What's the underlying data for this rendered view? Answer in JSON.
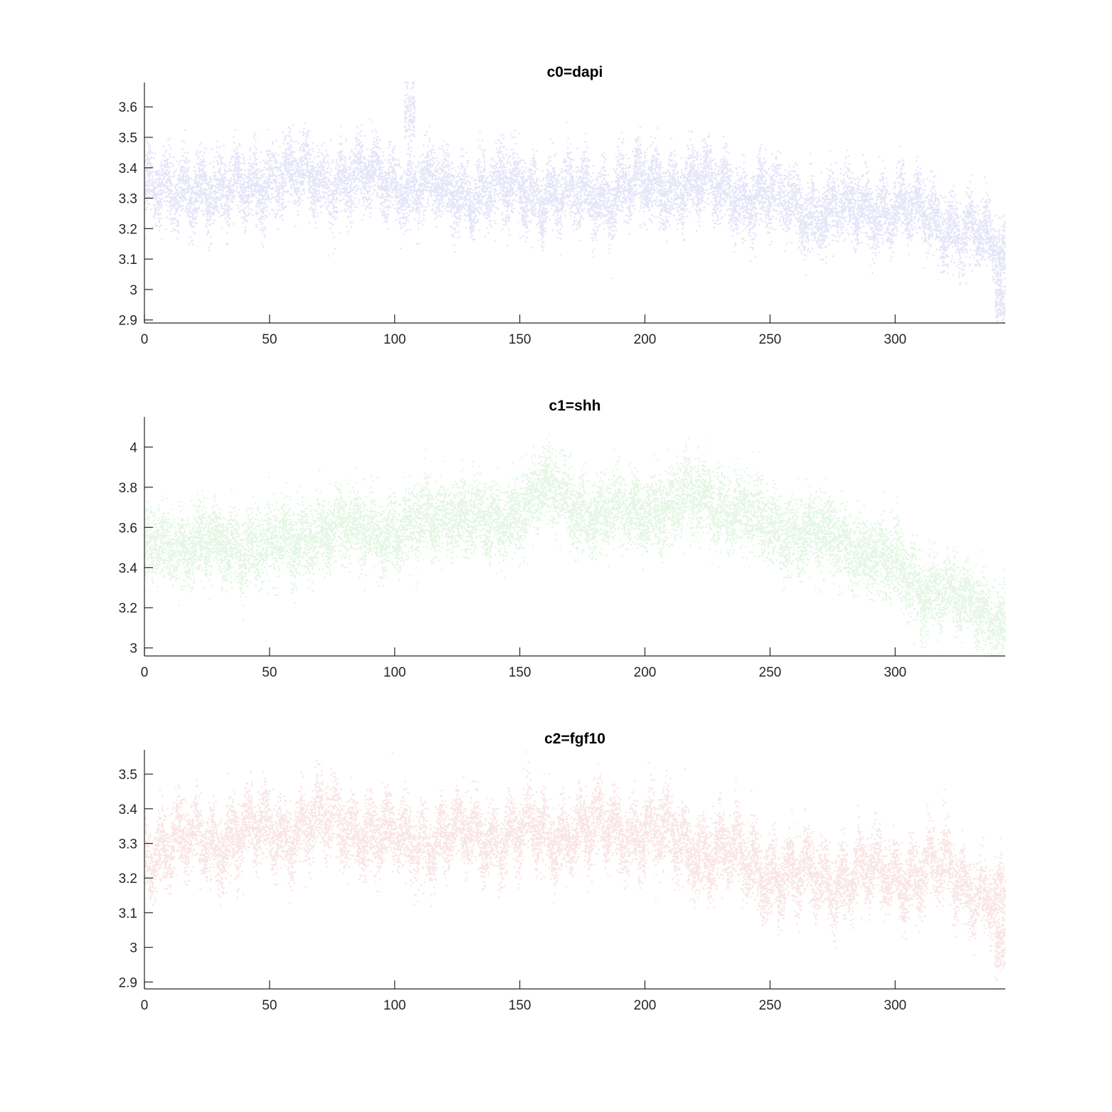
{
  "chart_data": [
    {
      "type": "scatter",
      "title": "c0=dapi",
      "xlabel": "",
      "ylabel": "",
      "xlim": [
        0,
        344
      ],
      "ylim": [
        2.89,
        3.68
      ],
      "xticks": [
        0,
        50,
        100,
        150,
        200,
        250,
        300
      ],
      "xtick_labels": [
        "0",
        "50",
        "100",
        "150",
        "200",
        "250",
        "300"
      ],
      "yticks": [
        2.9,
        3.0,
        3.1,
        3.2,
        3.3,
        3.4,
        3.5,
        3.6
      ],
      "ytick_labels": [
        "2.9",
        "3",
        "3.1",
        "3.2",
        "3.3",
        "3.4",
        "3.5",
        "3.6"
      ],
      "color": "#2a2ad0",
      "point_alpha": 0.12,
      "points_per_unit": 40,
      "noise_sd": 0.055,
      "trend": {
        "x": [
          0,
          10,
          20,
          30,
          50,
          80,
          100,
          120,
          150,
          170,
          200,
          220,
          250,
          270,
          300,
          320,
          335,
          344
        ],
        "y": [
          3.34,
          3.3,
          3.36,
          3.3,
          3.37,
          3.36,
          3.36,
          3.32,
          3.33,
          3.3,
          3.34,
          3.35,
          3.3,
          3.25,
          3.27,
          3.22,
          3.16,
          3.1
        ]
      },
      "outlier_clusters": [
        {
          "x_range": [
            104,
            108
          ],
          "y_center": 3.58,
          "spread": 0.05
        },
        {
          "x_range": [
            340,
            344
          ],
          "y_center": 2.96,
          "spread": 0.04
        }
      ]
    },
    {
      "type": "scatter",
      "title": "c1=shh",
      "xlabel": "",
      "ylabel": "",
      "xlim": [
        0,
        344
      ],
      "ylim": [
        2.96,
        4.15
      ],
      "xticks": [
        0,
        50,
        100,
        150,
        200,
        250,
        300
      ],
      "xtick_labels": [
        "0",
        "50",
        "100",
        "150",
        "200",
        "250",
        "300"
      ],
      "yticks": [
        3.0,
        3.2,
        3.4,
        3.6,
        3.8,
        4.0
      ],
      "ytick_labels": [
        "3",
        "3.2",
        "3.4",
        "3.6",
        "3.8",
        "4"
      ],
      "color": "#22b822",
      "point_alpha": 0.12,
      "points_per_unit": 40,
      "noise_sd": 0.09,
      "trend": {
        "x": [
          0,
          5,
          15,
          30,
          50,
          70,
          90,
          100,
          120,
          140,
          160,
          180,
          200,
          225,
          250,
          270,
          290,
          310,
          330,
          344
        ],
        "y": [
          3.45,
          3.55,
          3.5,
          3.52,
          3.5,
          3.58,
          3.6,
          3.56,
          3.68,
          3.6,
          3.8,
          3.66,
          3.68,
          3.75,
          3.6,
          3.55,
          3.48,
          3.3,
          3.22,
          3.12
        ]
      },
      "outlier_clusters": []
    },
    {
      "type": "scatter",
      "title": "c2=fgf10",
      "xlabel": "",
      "ylabel": "",
      "xlim": [
        0,
        344
      ],
      "ylim": [
        2.88,
        3.57
      ],
      "xticks": [
        0,
        50,
        100,
        150,
        200,
        250,
        300
      ],
      "xtick_labels": [
        "0",
        "50",
        "100",
        "150",
        "200",
        "250",
        "300"
      ],
      "yticks": [
        2.9,
        3.0,
        3.1,
        3.2,
        3.3,
        3.4,
        3.5
      ],
      "ytick_labels": [
        "2.9",
        "3",
        "3.1",
        "3.2",
        "3.3",
        "3.4",
        "3.5"
      ],
      "color": "#cc2a2a",
      "point_alpha": 0.12,
      "points_per_unit": 40,
      "noise_sd": 0.05,
      "trend": {
        "x": [
          0,
          20,
          50,
          80,
          100,
          150,
          200,
          230,
          260,
          290,
          320,
          335,
          344
        ],
        "y": [
          3.28,
          3.3,
          3.34,
          3.36,
          3.31,
          3.33,
          3.34,
          3.27,
          3.2,
          3.21,
          3.22,
          3.16,
          3.1
        ]
      },
      "outlier_clusters": [
        {
          "x_range": [
            340,
            344
          ],
          "y_center": 3.0,
          "spread": 0.04
        }
      ]
    }
  ]
}
